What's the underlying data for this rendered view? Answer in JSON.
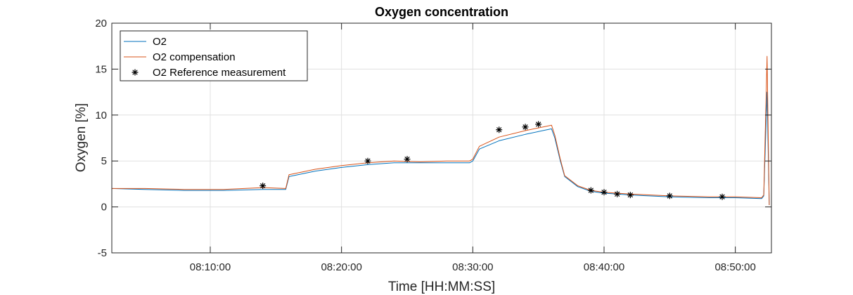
{
  "chart_data": {
    "type": "line",
    "title": "Oxygen concentration",
    "xlabel": "Time [HH:MM:SS]",
    "ylabel": "Oxygen [%]",
    "xlim": [
      "08:02:30",
      "08:52:45"
    ],
    "ylim": [
      -5,
      20
    ],
    "x_ticks": [
      "08:10:00",
      "08:20:00",
      "08:30:00",
      "08:40:00",
      "08:50:00"
    ],
    "y_ticks": [
      "-5",
      "0",
      "5",
      "10",
      "15",
      "20"
    ],
    "grid": true,
    "legend_position": "top-left",
    "series": [
      {
        "name": "O2",
        "color": "#0072BD",
        "x": [
          "08:02:30",
          "08:05:00",
          "08:08:00",
          "08:11:00",
          "08:14:00",
          "08:15:45",
          "08:16:00",
          "08:17:00",
          "08:18:00",
          "08:20:00",
          "08:22:00",
          "08:24:00",
          "08:26:00",
          "08:28:00",
          "08:29:45",
          "08:30:00",
          "08:30:30",
          "08:32:00",
          "08:34:00",
          "08:35:00",
          "08:36:00",
          "08:36:15",
          "08:36:40",
          "08:37:00",
          "08:38:00",
          "08:39:00",
          "08:40:00",
          "08:42:00",
          "08:45:00",
          "08:48:00",
          "08:50:00",
          "08:52:00",
          "08:52:10",
          "08:52:25",
          "08:52:35"
        ],
        "y": [
          2.0,
          1.9,
          1.8,
          1.8,
          1.9,
          1.9,
          3.3,
          3.6,
          3.9,
          4.3,
          4.6,
          4.8,
          4.8,
          4.8,
          4.8,
          5.0,
          6.3,
          7.2,
          7.9,
          8.2,
          8.5,
          7.5,
          5.0,
          3.3,
          2.2,
          1.7,
          1.5,
          1.3,
          1.1,
          1.0,
          1.0,
          0.9,
          1.2,
          12.5,
          0.2
        ]
      },
      {
        "name": "O2 compensation",
        "color": "#D95319",
        "x": [
          "08:02:30",
          "08:05:00",
          "08:08:00",
          "08:11:00",
          "08:14:00",
          "08:15:45",
          "08:16:00",
          "08:17:00",
          "08:18:00",
          "08:20:00",
          "08:22:00",
          "08:24:00",
          "08:26:00",
          "08:28:00",
          "08:29:45",
          "08:30:00",
          "08:30:30",
          "08:32:00",
          "08:34:00",
          "08:35:00",
          "08:36:00",
          "08:36:15",
          "08:36:40",
          "08:37:00",
          "08:38:00",
          "08:39:00",
          "08:40:00",
          "08:42:00",
          "08:45:00",
          "08:48:00",
          "08:50:00",
          "08:52:00",
          "08:52:10",
          "08:52:25",
          "08:52:35"
        ],
        "y": [
          2.0,
          2.0,
          1.9,
          1.9,
          2.1,
          2.0,
          3.5,
          3.8,
          4.1,
          4.5,
          4.8,
          5.0,
          4.9,
          5.0,
          5.0,
          5.2,
          6.6,
          7.6,
          8.3,
          8.6,
          8.9,
          7.8,
          5.2,
          3.4,
          2.3,
          1.8,
          1.6,
          1.4,
          1.2,
          1.1,
          1.1,
          1.0,
          1.3,
          16.4,
          0.2
        ]
      },
      {
        "name": "O2 Reference measurement",
        "color": "#000000",
        "marker": "asterisk",
        "x": [
          "08:14:00",
          "08:22:00",
          "08:25:00",
          "08:32:00",
          "08:34:00",
          "08:35:00",
          "08:39:00",
          "08:40:00",
          "08:41:00",
          "08:42:00",
          "08:45:00",
          "08:49:00"
        ],
        "y": [
          2.3,
          5.0,
          5.2,
          8.4,
          8.7,
          9.0,
          1.8,
          1.6,
          1.4,
          1.3,
          1.2,
          1.1
        ]
      }
    ]
  }
}
